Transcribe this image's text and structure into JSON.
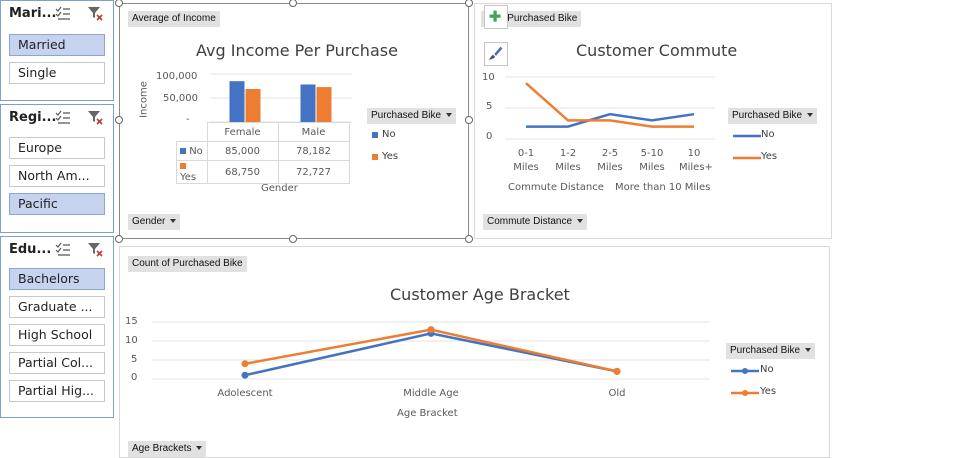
{
  "slicers": {
    "marital": {
      "title": "Mari...",
      "items": [
        {
          "label": "Married",
          "selected": true
        },
        {
          "label": "Single",
          "selected": false
        }
      ]
    },
    "region": {
      "title": "Regi...",
      "items": [
        {
          "label": "Europe",
          "selected": false
        },
        {
          "label": "North Am...",
          "selected": false
        },
        {
          "label": "Pacific",
          "selected": true
        }
      ]
    },
    "education": {
      "title": "Edu...",
      "items": [
        {
          "label": "Bachelors",
          "selected": true
        },
        {
          "label": "Graduate ...",
          "selected": false
        },
        {
          "label": "High School",
          "selected": false
        },
        {
          "label": "Partial Col...",
          "selected": false
        },
        {
          "label": "Partial Hig...",
          "selected": false
        }
      ]
    }
  },
  "income_chart": {
    "value_button": "Average of Income",
    "axis_button": "Gender",
    "legend_button": "Purchased Bike",
    "title": "Avg Income Per Purchase",
    "ylabel": "Income",
    "xlabel": "Gender",
    "y_ticks": [
      "100,000",
      "50,000",
      "-"
    ],
    "table": {
      "headers": [
        "Female",
        "Male"
      ],
      "rows": [
        {
          "label": "No",
          "values": [
            "85,000",
            "78,182"
          ]
        },
        {
          "label": "Yes",
          "values": [
            "68,750",
            "72,727"
          ]
        }
      ]
    },
    "legend": [
      "No",
      "Yes"
    ]
  },
  "commute_chart": {
    "value_button": "nt of Purchased Bike",
    "axis_button": "Commute Distance",
    "legend_button": "Purchased Bike",
    "title": "Customer Commute",
    "xlabel": "Commute Distance",
    "x_labels": [
      [
        "0-1",
        "Miles"
      ],
      [
        "1-2",
        "Miles"
      ],
      [
        "2-5",
        "Miles"
      ],
      [
        "5-10",
        "Miles"
      ],
      [
        "10",
        "Miles+"
      ]
    ],
    "y_ticks": [
      "10",
      "5",
      "0"
    ],
    "more_label": "More than 10 Miles",
    "legend": [
      "No",
      "Yes"
    ]
  },
  "age_chart": {
    "value_button": "Count of Purchased Bike",
    "axis_button": "Age Brackets",
    "legend_button": "Purchased Bike",
    "title": "Customer Age Bracket",
    "xlabel": "Age Bracket",
    "y_ticks": [
      "15",
      "10",
      "5",
      "0"
    ],
    "legend": [
      "No",
      "Yes"
    ]
  },
  "colors": {
    "no": "#4472c4",
    "yes": "#ed7d31",
    "selected_item": "#c6d3ee",
    "slicer_border": "#7da1c7"
  },
  "chart_data": [
    {
      "type": "bar",
      "title": "Avg Income Per Purchase",
      "xlabel": "Gender",
      "ylabel": "Income",
      "ylim": [
        0,
        100000
      ],
      "categories": [
        "Female",
        "Male"
      ],
      "series": [
        {
          "name": "No",
          "values": [
            85000,
            78182
          ]
        },
        {
          "name": "Yes",
          "values": [
            68750,
            72727
          ]
        }
      ]
    },
    {
      "type": "line",
      "title": "Customer Commute",
      "xlabel": "Commute Distance",
      "ylim": [
        0,
        10
      ],
      "categories": [
        "0-1 Miles",
        "1-2 Miles",
        "2-5 Miles",
        "5-10 Miles",
        "10 Miles+"
      ],
      "series": [
        {
          "name": "No",
          "values": [
            2,
            2,
            4,
            3,
            4
          ]
        },
        {
          "name": "Yes",
          "values": [
            9,
            3,
            3,
            2,
            2
          ]
        }
      ]
    },
    {
      "type": "line",
      "title": "Customer Age Bracket",
      "xlabel": "Age Bracket",
      "ylim": [
        0,
        15
      ],
      "categories": [
        "Adolescent",
        "Middle Age",
        "Old"
      ],
      "series": [
        {
          "name": "No",
          "values": [
            1,
            12,
            2
          ]
        },
        {
          "name": "Yes",
          "values": [
            4,
            13,
            2
          ]
        }
      ]
    }
  ]
}
